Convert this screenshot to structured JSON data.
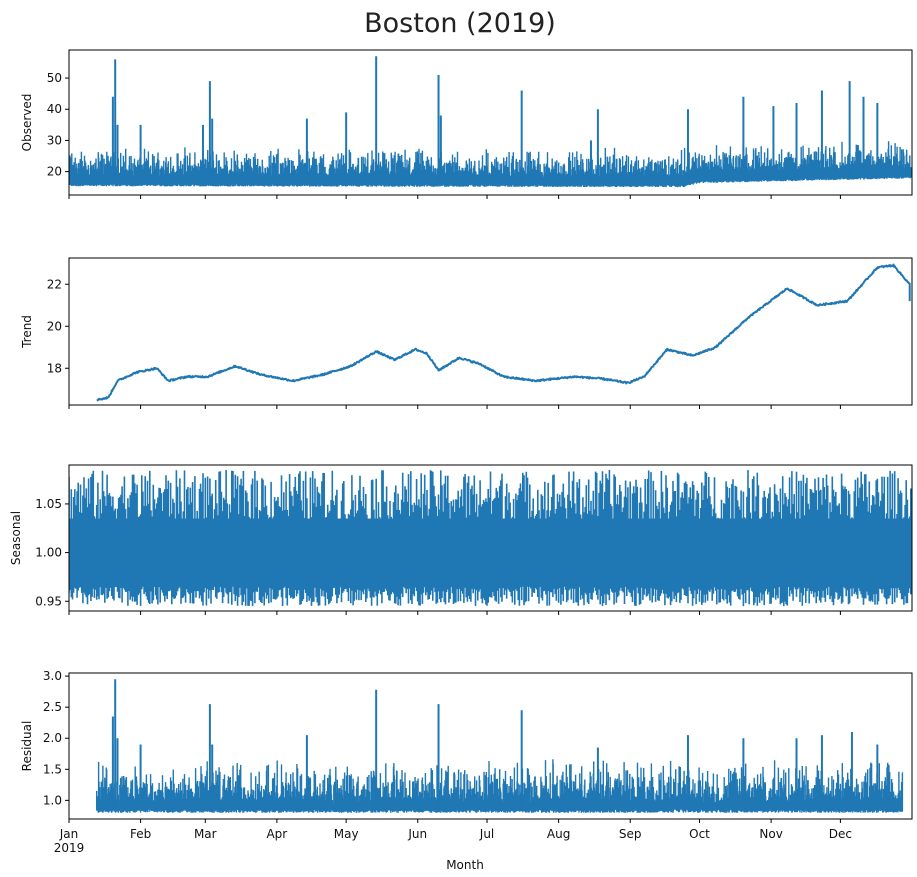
{
  "chart_data": {
    "type": "line",
    "title": "Boston (2019)",
    "xlabel": "Month",
    "x_ticks": [
      "Jan",
      "Feb",
      "Mar",
      "Apr",
      "May",
      "Jun",
      "Jul",
      "Aug",
      "Sep",
      "Oct",
      "Nov",
      "Dec"
    ],
    "x_year_label": "2019",
    "x_range": [
      "2019-01-01",
      "2019-12-31"
    ],
    "color": "#1f77b4",
    "grid": false,
    "panels": [
      {
        "name": "observed",
        "ylabel": "Observed",
        "ylim": [
          12.5,
          59
        ],
        "yticks": [
          "20",
          "30",
          "40",
          "50"
        ],
        "ytick_values": [
          20,
          30,
          40,
          50
        ],
        "baseline_points": [
          [
            "2019-01-01",
            16.5
          ],
          [
            "2019-09-24",
            16.2
          ],
          [
            "2019-10-01",
            17.5
          ],
          [
            "2019-12-31",
            19.0
          ]
        ],
        "spikes": [
          [
            "2019-01-21",
            56
          ],
          [
            "2019-01-20",
            44
          ],
          [
            "2019-01-22",
            35
          ],
          [
            "2019-02-01",
            35
          ],
          [
            "2019-02-28",
            35
          ],
          [
            "2019-03-03",
            49
          ],
          [
            "2019-03-04",
            37
          ],
          [
            "2019-04-14",
            37
          ],
          [
            "2019-05-01",
            39
          ],
          [
            "2019-05-14",
            57
          ],
          [
            "2019-06-10",
            51
          ],
          [
            "2019-06-11",
            38
          ],
          [
            "2019-07-16",
            46
          ],
          [
            "2019-08-15",
            30
          ],
          [
            "2019-08-18",
            40
          ],
          [
            "2019-09-26",
            40
          ],
          [
            "2019-10-20",
            44
          ],
          [
            "2019-11-02",
            41
          ],
          [
            "2019-11-12",
            42
          ],
          [
            "2019-11-23",
            46
          ],
          [
            "2019-12-05",
            49
          ],
          [
            "2019-12-11",
            44
          ],
          [
            "2019-12-17",
            42
          ]
        ]
      },
      {
        "name": "trend",
        "ylabel": "Trend",
        "ylim": [
          16.25,
          23.25
        ],
        "yticks": [
          "18",
          "20",
          "22"
        ],
        "ytick_values": [
          18,
          20,
          22
        ],
        "points": [
          [
            "2019-01-13",
            16.5
          ],
          [
            "2019-01-18",
            16.6
          ],
          [
            "2019-01-22",
            17.4
          ],
          [
            "2019-01-30",
            17.8
          ],
          [
            "2019-02-08",
            18.0
          ],
          [
            "2019-02-13",
            17.4
          ],
          [
            "2019-02-21",
            17.6
          ],
          [
            "2019-03-02",
            17.6
          ],
          [
            "2019-03-14",
            18.1
          ],
          [
            "2019-03-25",
            17.7
          ],
          [
            "2019-04-08",
            17.4
          ],
          [
            "2019-04-21",
            17.7
          ],
          [
            "2019-05-03",
            18.1
          ],
          [
            "2019-05-14",
            18.8
          ],
          [
            "2019-05-22",
            18.4
          ],
          [
            "2019-05-31",
            18.9
          ],
          [
            "2019-06-05",
            18.7
          ],
          [
            "2019-06-10",
            17.9
          ],
          [
            "2019-06-19",
            18.5
          ],
          [
            "2019-06-28",
            18.2
          ],
          [
            "2019-07-08",
            17.6
          ],
          [
            "2019-07-22",
            17.4
          ],
          [
            "2019-08-08",
            17.6
          ],
          [
            "2019-08-20",
            17.5
          ],
          [
            "2019-08-31",
            17.3
          ],
          [
            "2019-09-07",
            17.6
          ],
          [
            "2019-09-17",
            18.9
          ],
          [
            "2019-09-28",
            18.6
          ],
          [
            "2019-10-08",
            19.0
          ],
          [
            "2019-10-22",
            20.4
          ],
          [
            "2019-11-08",
            21.8
          ],
          [
            "2019-11-21",
            21.0
          ],
          [
            "2019-12-04",
            21.2
          ],
          [
            "2019-12-17",
            22.8
          ],
          [
            "2019-12-24",
            22.9
          ],
          [
            "2019-12-31",
            22.0
          ],
          [
            "2019-12-31",
            21.2
          ]
        ]
      },
      {
        "name": "seasonal",
        "ylabel": "Seasonal",
        "ylim": [
          0.94,
          1.09
        ],
        "yticks": [
          "0.95",
          "1.00",
          "1.05"
        ],
        "ytick_values": [
          0.95,
          1.0,
          1.05
        ],
        "band": [
          0.97,
          1.035
        ],
        "peaks": [
          1.085,
          1.03
        ],
        "troughs": [
          0.945,
          0.965
        ],
        "cycle_days": 1
      },
      {
        "name": "residual",
        "ylabel": "Residual",
        "ylim": [
          0.7,
          3.05
        ],
        "yticks": [
          "1.0",
          "1.5",
          "2.0",
          "2.5",
          "3.0"
        ],
        "ytick_values": [
          1.0,
          1.5,
          2.0,
          2.5,
          3.0
        ],
        "baseline": 0.85,
        "spikes": [
          [
            "2019-01-20",
            2.35
          ],
          [
            "2019-01-21",
            2.95
          ],
          [
            "2019-01-22",
            2.0
          ],
          [
            "2019-02-01",
            1.9
          ],
          [
            "2019-03-03",
            2.55
          ],
          [
            "2019-03-04",
            1.9
          ],
          [
            "2019-04-14",
            2.05
          ],
          [
            "2019-05-14",
            2.78
          ],
          [
            "2019-06-10",
            2.55
          ],
          [
            "2019-07-16",
            2.45
          ],
          [
            "2019-08-18",
            1.85
          ],
          [
            "2019-09-26",
            2.05
          ],
          [
            "2019-10-20",
            2.0
          ],
          [
            "2019-11-12",
            2.0
          ],
          [
            "2019-11-23",
            2.05
          ],
          [
            "2019-12-06",
            2.1
          ],
          [
            "2019-12-17",
            1.9
          ]
        ]
      }
    ]
  }
}
